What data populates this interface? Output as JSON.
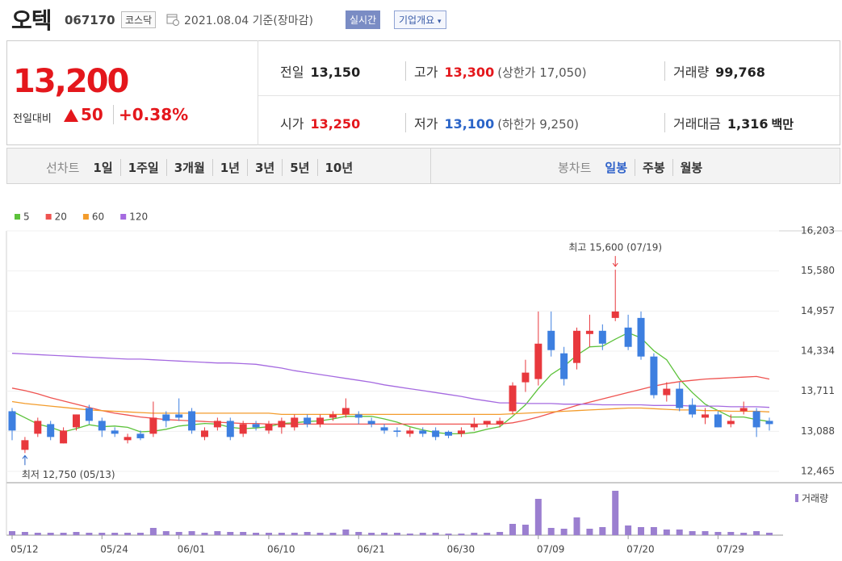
{
  "header": {
    "name": "오텍",
    "code": "067170",
    "market": "코스닥",
    "date": "2021.08.04 기준(장마감)",
    "realtime": "실시간",
    "company_info": "기업개요"
  },
  "quote": {
    "price": "13,200",
    "change_label": "전일대비",
    "change": "50",
    "change_pct": "+0.38%",
    "items": [
      {
        "label": "전일",
        "value": "13,150"
      },
      {
        "label": "고가",
        "value": "13,300",
        "extra": "(상한가 17,050)"
      },
      {
        "label": "거래량",
        "value": "99,768"
      },
      {
        "label": "시가",
        "value": "13,250"
      },
      {
        "label": "저가",
        "value": "13,100",
        "extra": "(하한가 9,250)"
      },
      {
        "label": "거래대금",
        "value": "1,316",
        "extra": "백만"
      }
    ]
  },
  "tabs": {
    "line_label": "선차트",
    "line": [
      "1일",
      "1주일",
      "3개월",
      "1년",
      "3년",
      "5년",
      "10년"
    ],
    "candle_label": "봉차트",
    "candle": [
      "일봉",
      "주봉",
      "월봉"
    ],
    "candle_active": 0
  },
  "chart_data": {
    "type": "candlestick",
    "categories": [
      "05/12",
      null,
      null,
      null,
      null,
      null,
      null,
      "05/24",
      null,
      null,
      null,
      null,
      null,
      "06/01",
      null,
      null,
      null,
      null,
      null,
      null,
      "06/10",
      null,
      null,
      null,
      null,
      null,
      null,
      "06/21",
      null,
      null,
      null,
      null,
      null,
      null,
      "06/30",
      null,
      null,
      null,
      null,
      null,
      null,
      "07/09",
      null,
      null,
      null,
      null,
      null,
      null,
      "07/20",
      null,
      null,
      null,
      null,
      null,
      null,
      "07/29",
      null,
      null,
      null,
      null
    ],
    "open": [
      13400,
      12800,
      13050,
      13200,
      12900,
      13150,
      13450,
      13250,
      13100,
      12950,
      13050,
      13050,
      13350,
      13350,
      13400,
      13000,
      13150,
      13250,
      13050,
      13200,
      13100,
      13150,
      13150,
      13300,
      13200,
      13300,
      13350,
      13350,
      13250,
      13150,
      13100,
      13050,
      13100,
      13100,
      13080,
      13050,
      13150,
      13200,
      13200,
      13400,
      13850,
      13900,
      14650,
      14300,
      14150,
      14600,
      14650,
      14850,
      14700,
      14850,
      14250,
      13650,
      13750,
      13500,
      13300,
      13350,
      13200,
      13400,
      13400,
      13250
    ],
    "high": [
      13450,
      13000,
      13300,
      13250,
      13150,
      13350,
      13500,
      13300,
      13150,
      13050,
      13100,
      13550,
      13400,
      13600,
      13450,
      13150,
      13300,
      13300,
      13250,
      13250,
      13250,
      13300,
      13350,
      13350,
      13350,
      13400,
      13600,
      13400,
      13300,
      13200,
      13150,
      13150,
      13150,
      13150,
      13100,
      13150,
      13300,
      13250,
      13300,
      13850,
      14200,
      14950,
      14950,
      14400,
      14700,
      14900,
      14750,
      15600,
      14900,
      14950,
      14300,
      13850,
      13850,
      13600,
      13450,
      13400,
      13350,
      13550,
      13450,
      13300
    ],
    "low": [
      12950,
      12750,
      13000,
      12950,
      12900,
      13100,
      13200,
      13000,
      13000,
      12900,
      12950,
      13000,
      13150,
      13250,
      13050,
      12950,
      13100,
      12950,
      13000,
      13100,
      13050,
      13050,
      13100,
      13150,
      13150,
      13250,
      13300,
      13200,
      13150,
      13050,
      13000,
      13000,
      13000,
      12950,
      12980,
      13000,
      13100,
      13150,
      13150,
      13350,
      13700,
      13800,
      14250,
      13800,
      14050,
      14400,
      14350,
      14800,
      14350,
      14200,
      13600,
      13550,
      13400,
      13300,
      13200,
      13150,
      13150,
      13350,
      13000,
      13100
    ],
    "close": [
      13100,
      12950,
      13250,
      13000,
      13100,
      13350,
      13250,
      13100,
      13050,
      13000,
      12980,
      13300,
      13250,
      13300,
      13100,
      13100,
      13250,
      13000,
      13200,
      13150,
      13200,
      13250,
      13300,
      13200,
      13300,
      13350,
      13450,
      13300,
      13200,
      13100,
      13080,
      13100,
      13050,
      13000,
      13020,
      13100,
      13200,
      13250,
      13250,
      13800,
      14000,
      14450,
      14350,
      13900,
      14650,
      14650,
      14450,
      14950,
      14400,
      14250,
      13650,
      13750,
      13450,
      13350,
      13350,
      13150,
      13250,
      13450,
      13150,
      13200
    ],
    "up_color": "#e8383d",
    "down_color": "#3d7fe0",
    "ylim": [
      12465,
      16203
    ],
    "yticks": [
      {
        "value": 12465,
        "label": "12,465"
      },
      {
        "value": 13088,
        "label": "13,088"
      },
      {
        "value": 13711,
        "label": "13,711"
      },
      {
        "value": 14334,
        "label": "14,334"
      },
      {
        "value": 14957,
        "label": "14,957"
      },
      {
        "value": 15580,
        "label": "15,580"
      },
      {
        "value": 16203,
        "label": "16,203"
      }
    ],
    "series": [
      {
        "name": "5",
        "color": "#5cc23a",
        "values": [
          13400,
          13300,
          13200,
          13150,
          13080,
          13130,
          13190,
          13160,
          13170,
          13150,
          13080,
          13090,
          13120,
          13170,
          13190,
          13210,
          13200,
          13150,
          13130,
          13140,
          13160,
          13210,
          13220,
          13240,
          13250,
          13280,
          13320,
          13320,
          13320,
          13280,
          13230,
          13160,
          13110,
          13070,
          13050,
          13050,
          13070,
          13120,
          13160,
          13320,
          13500,
          13750,
          13970,
          14100,
          14270,
          14400,
          14410,
          14520,
          14620,
          14540,
          14340,
          14200,
          13900,
          13690,
          13510,
          13410,
          13310,
          13310,
          13270,
          13240
        ]
      },
      {
        "name": "20",
        "color": "#ef5350",
        "values": [
          13760,
          13720,
          13670,
          13610,
          13560,
          13510,
          13460,
          13410,
          13370,
          13340,
          13310,
          13290,
          13270,
          13260,
          13250,
          13240,
          13230,
          13220,
          13210,
          13210,
          13200,
          13200,
          13200,
          13200,
          13200,
          13200,
          13200,
          13200,
          13200,
          13200,
          13200,
          13200,
          13200,
          13200,
          13200,
          13200,
          13200,
          13200,
          13200,
          13220,
          13260,
          13310,
          13370,
          13430,
          13490,
          13540,
          13590,
          13640,
          13690,
          13740,
          13790,
          13830,
          13860,
          13880,
          13900,
          13910,
          13920,
          13930,
          13940,
          13900
        ]
      },
      {
        "name": "60",
        "color": "#f39c2c",
        "values": [
          13550,
          13520,
          13500,
          13480,
          13460,
          13440,
          13420,
          13410,
          13400,
          13390,
          13380,
          13370,
          13370,
          13370,
          13370,
          13370,
          13370,
          13370,
          13370,
          13370,
          13370,
          13350,
          13350,
          13350,
          13350,
          13350,
          13350,
          13350,
          13350,
          13350,
          13350,
          13350,
          13350,
          13350,
          13350,
          13350,
          13350,
          13350,
          13350,
          13360,
          13370,
          13380,
          13390,
          13400,
          13410,
          13420,
          13430,
          13440,
          13450,
          13450,
          13440,
          13430,
          13420,
          13420,
          13410,
          13410,
          13400,
          13400,
          13400,
          13390
        ]
      },
      {
        "name": "120",
        "color": "#a56ae0",
        "values": [
          14300,
          14290,
          14280,
          14270,
          14260,
          14250,
          14240,
          14230,
          14220,
          14210,
          14210,
          14200,
          14190,
          14180,
          14170,
          14160,
          14150,
          14150,
          14140,
          14130,
          14100,
          14070,
          14030,
          14000,
          13970,
          13940,
          13910,
          13880,
          13850,
          13810,
          13780,
          13750,
          13720,
          13690,
          13660,
          13630,
          13590,
          13560,
          13530,
          13530,
          13520,
          13520,
          13520,
          13510,
          13510,
          13510,
          13500,
          13500,
          13500,
          13500,
          13490,
          13490,
          13490,
          13480,
          13480,
          13480,
          13470,
          13470,
          13470,
          13460
        ]
      }
    ],
    "volume": {
      "name": "거래량",
      "color": "#9b7fd0",
      "ylim": [
        0,
        1980000
      ],
      "values": [
        165000,
        132000,
        99000,
        99000,
        99000,
        132000,
        99000,
        99000,
        99000,
        99000,
        99000,
        297000,
        165000,
        132000,
        165000,
        99000,
        165000,
        132000,
        132000,
        99000,
        99000,
        99000,
        99000,
        132000,
        99000,
        99000,
        231000,
        132000,
        99000,
        99000,
        99000,
        66000,
        99000,
        99000,
        66000,
        66000,
        99000,
        99000,
        132000,
        462000,
        429000,
        1485000,
        297000,
        264000,
        726000,
        264000,
        330000,
        1815000,
        396000,
        330000,
        330000,
        231000,
        231000,
        165000,
        165000,
        132000,
        132000,
        99000,
        165000,
        99768
      ]
    },
    "annotations": {
      "high": "최고 15,600 (07/19)",
      "low": "최저 12,750 (05/13)"
    }
  }
}
